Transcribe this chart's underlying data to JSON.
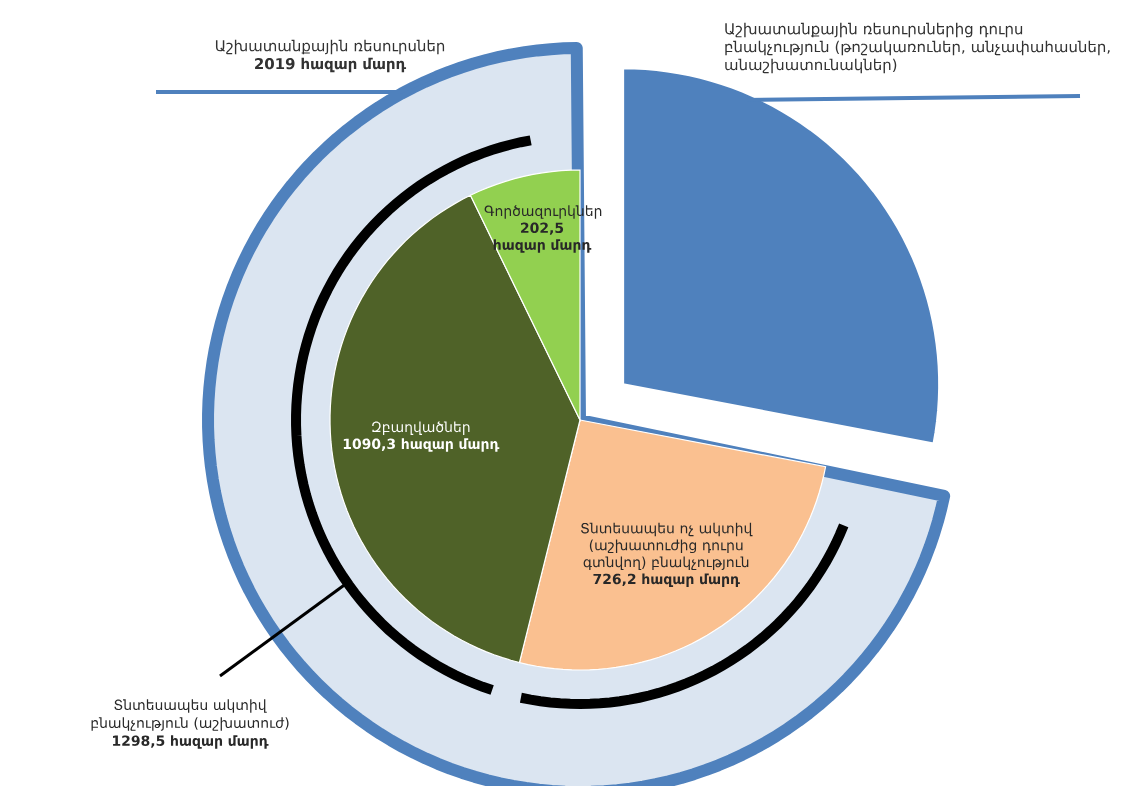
{
  "chart_data": [
    {
      "type": "pie",
      "categories": [
        "Աշխատանքային ռեսուրսներից դուրս բնակչություն (թոշակառուներ, անչափահասներ, անաշխատունակներ)",
        "Աշխատանքային ռեսուրսներ"
      ],
      "values": [
        785,
        2019
      ],
      "colors": [
        "#4f81bd",
        "#dbe5f1"
      ],
      "value_labels": [
        null,
        "2019 հազար մարդ"
      ]
    },
    {
      "type": "pie",
      "categories": [
        "Տնտեսապես ոչ ակտիվ (աշխատուժից դուրս գտնվող) բնակչություն",
        "Զբաղվածներ",
        "Գործազուրկներ"
      ],
      "values": [
        726.2,
        1090.3,
        202.5
      ],
      "colors": [
        "#fac090",
        "#4f6228",
        "#92d050"
      ],
      "value_labels": [
        "726,2 հազար մարդ",
        "1090,3 հազար մարդ",
        "202,5 հազար մարդ"
      ],
      "annotations": [
        "Տնտեսապես ակտիվ բնակչություն (աշխատուժ)",
        "1298,5 հազար մարդ"
      ]
    }
  ]
}
